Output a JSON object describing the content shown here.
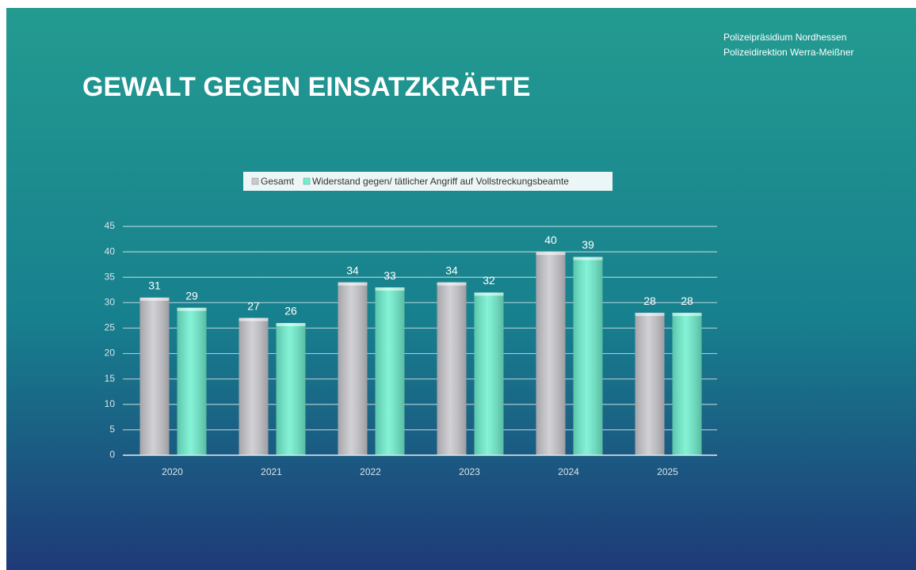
{
  "header": {
    "org_line1": "Polizeipräsidium Nordhessen",
    "org_line2": "Polizeidirektion Werra-Meißner"
  },
  "chart_data": {
    "type": "bar",
    "title": "GEWALT GEGEN EINSATZKRÄFTE",
    "categories": [
      "2020",
      "2021",
      "2022",
      "2023",
      "2024",
      "2025"
    ],
    "series": [
      {
        "name": "Gesamt",
        "color": "#c9c9ce",
        "values": [
          31,
          27,
          34,
          34,
          40,
          28
        ]
      },
      {
        "name": "Widerstand gegen/ tätlicher Angriff auf Vollstreckungsbeamte",
        "color": "#6ff0cf",
        "values": [
          29,
          26,
          33,
          32,
          39,
          28
        ]
      }
    ],
    "ylim": [
      0,
      45
    ],
    "yticks": [
      0,
      5,
      10,
      15,
      20,
      25,
      30,
      35,
      40,
      45
    ],
    "grid": true,
    "legend": "top"
  }
}
